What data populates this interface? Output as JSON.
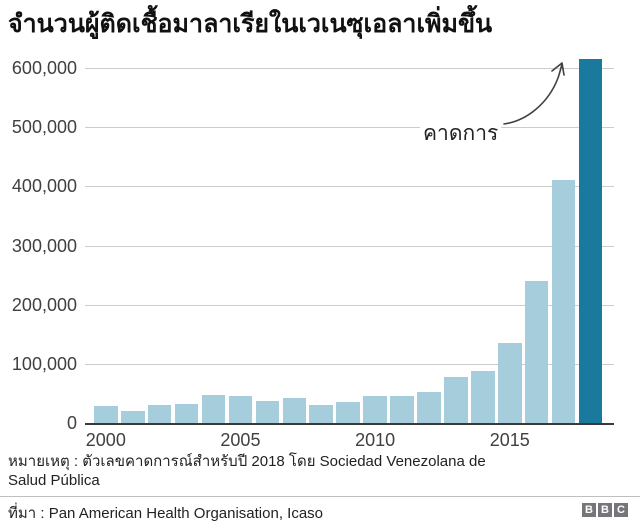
{
  "title": "จำนวนผู้ติดเชื้อมาลาเรียในเวเนซุเอลาเพิ่มขึ้น",
  "chart_data": {
    "type": "bar",
    "title": "จำนวนผู้ติดเชื้อมาลาเรียในเวเนซุเอลาเพิ่มขึ้น",
    "xlabel": "",
    "ylabel": "",
    "categories": [
      "2000",
      "2001",
      "2002",
      "2003",
      "2004",
      "2005",
      "2006",
      "2007",
      "2008",
      "2009",
      "2010",
      "2011",
      "2012",
      "2013",
      "2014",
      "2015",
      "2016",
      "2017",
      "2018"
    ],
    "values": [
      29000,
      21000,
      30000,
      32000,
      47000,
      46000,
      37000,
      42000,
      31000,
      35000,
      45000,
      46000,
      52000,
      78000,
      88000,
      136000,
      240000,
      411000,
      615000
    ],
    "highlight_index": 18,
    "annotation": "คาดการ",
    "annotation_meaning": "forecast bar for 2018",
    "ylim": [
      0,
      600000
    ],
    "grid": true,
    "legend": "none",
    "yticks": [
      {
        "value": 0,
        "label": "0"
      },
      {
        "value": 100000,
        "label": "100,000"
      },
      {
        "value": 200000,
        "label": "200,000"
      },
      {
        "value": 300000,
        "label": "300,000"
      },
      {
        "value": 400000,
        "label": "400,000"
      },
      {
        "value": 500000,
        "label": "500,000"
      },
      {
        "value": 600000,
        "label": "600,000"
      }
    ],
    "xticks": [
      {
        "index": 0,
        "label": "2000"
      },
      {
        "index": 5,
        "label": "2005"
      },
      {
        "index": 10,
        "label": "2010"
      },
      {
        "index": 15,
        "label": "2015"
      }
    ],
    "colors": {
      "bar": "#A6CDDB",
      "bar_highlight": "#1A7A9D",
      "gridline": "#CCCCCC",
      "axis": "#3A3A3A",
      "tick_text": "#404040"
    }
  },
  "footer": {
    "note_line1": "หมายเหตุ : ตัวเลขคาดการณ์สำหรับปี 2018 โดย Sociedad Venezolana de",
    "note_line2": "Salud Pública",
    "source": "ที่มา : Pan American Health Organisation, Icaso",
    "logo": {
      "letters": [
        "B",
        "B",
        "C"
      ],
      "color": "#76767A"
    }
  }
}
